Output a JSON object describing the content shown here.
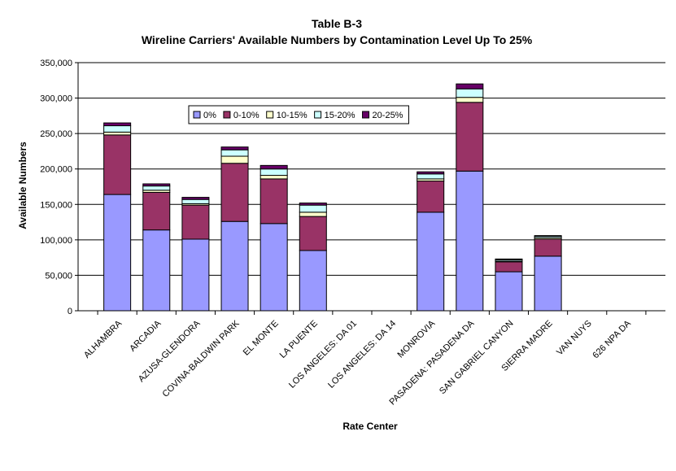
{
  "chart_data": {
    "type": "bar",
    "stacked": true,
    "title": "Table B-3",
    "subtitle": "Wireline Carriers' Available Numbers by Contamination Level Up To 25%",
    "xlabel": "Rate Center",
    "ylabel": "Available Numbers",
    "ylim": [
      0,
      350000
    ],
    "yticks": [
      "0",
      "50,000",
      "100,000",
      "150,000",
      "200,000",
      "250,000",
      "300,000",
      "350,000"
    ],
    "grid": true,
    "legend_position": "top-left inside plot",
    "categories": [
      "ALHAMBRA",
      "ARCADIA",
      "AZUSA-GLENDORA",
      "COVINA-BALDWIN PARK",
      "EL MONTE",
      "LA PUENTE",
      "LOS ANGELES: DA 01",
      "LOS ANGELES: DA 14",
      "MONROVIA",
      "PASADENA: PASADENA DA",
      "SAN GABRIEL CANYON",
      "SIERRA MADRE",
      "VAN NUYS",
      "626 NPA DA"
    ],
    "series": [
      {
        "name": "0%",
        "color": "#9999ff",
        "values": [
          164000,
          114000,
          101000,
          126000,
          123000,
          85000,
          0,
          0,
          139000,
          197000,
          55000,
          77000,
          0,
          0
        ]
      },
      {
        "name": "0-10%",
        "color": "#993366",
        "values": [
          84000,
          53000,
          48000,
          82000,
          63000,
          48000,
          0,
          0,
          44000,
          97000,
          14000,
          24000,
          0,
          0
        ]
      },
      {
        "name": "10-15%",
        "color": "#ffffcc",
        "values": [
          4000,
          3000,
          2000,
          10000,
          5000,
          6000,
          0,
          0,
          3000,
          7000,
          1000,
          2000,
          0,
          0
        ]
      },
      {
        "name": "15-20%",
        "color": "#ccffff",
        "values": [
          9000,
          6000,
          6000,
          9000,
          9000,
          10000,
          0,
          0,
          7000,
          12000,
          2000,
          2000,
          0,
          0
        ]
      },
      {
        "name": "20-25%",
        "color": "#660066",
        "values": [
          4000,
          3000,
          3000,
          4000,
          5000,
          3000,
          0,
          0,
          3000,
          7000,
          1000,
          1000,
          0,
          0
        ]
      }
    ]
  }
}
